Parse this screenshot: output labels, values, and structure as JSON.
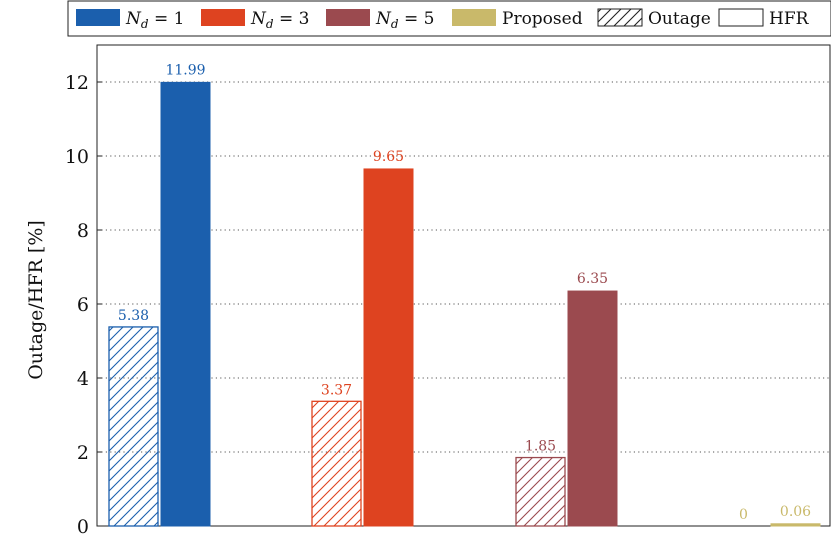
{
  "chart_data": {
    "type": "bar",
    "ylabel": "Outage/HFR [%]",
    "ylim": [
      0,
      13
    ],
    "yticks": [
      0,
      2,
      4,
      6,
      8,
      10,
      12
    ],
    "grid": "horizontal-dotted",
    "legend_position": "top",
    "legend": [
      {
        "name": "N_d = 1",
        "kind": "series",
        "color": "#1b5fad"
      },
      {
        "name": "N_d = 3",
        "kind": "series",
        "color": "#de4320"
      },
      {
        "name": "N_d = 5",
        "kind": "series",
        "color": "#9b4a4f"
      },
      {
        "name": "Proposed",
        "kind": "series",
        "color": "#c9b96a"
      },
      {
        "name": "Outage",
        "kind": "pattern",
        "pattern": "hatched"
      },
      {
        "name": "HFR",
        "kind": "pattern",
        "pattern": "solid"
      }
    ],
    "groups": [
      {
        "name": "N_d = 1",
        "color": "#1b5fad",
        "outage": 5.38,
        "hfr": 11.99,
        "outage_label": "5.38",
        "hfr_label": "11.99"
      },
      {
        "name": "N_d = 3",
        "color": "#de4320",
        "outage": 3.37,
        "hfr": 9.65,
        "outage_label": "3.37",
        "hfr_label": "9.65"
      },
      {
        "name": "N_d = 5",
        "color": "#9b4a4f",
        "outage": 1.85,
        "hfr": 6.35,
        "outage_label": "1.85",
        "hfr_label": "6.35"
      },
      {
        "name": "Proposed",
        "color": "#c9b96a",
        "outage": 0,
        "hfr": 0.06,
        "outage_label": "0",
        "hfr_label": "0.06"
      }
    ]
  }
}
